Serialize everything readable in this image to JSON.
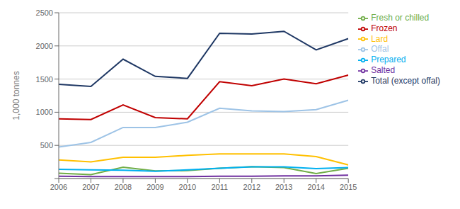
{
  "chart_data": {
    "type": "line",
    "x": [
      2006,
      2007,
      2008,
      2009,
      2010,
      2011,
      2012,
      2013,
      2014,
      2015
    ],
    "series": [
      {
        "name": "Total (except offal)",
        "color": "#1f3864",
        "values": [
          1420,
          1390,
          1800,
          1540,
          1510,
          2190,
          2180,
          2220,
          1940,
          2110
        ]
      },
      {
        "name": "Frozen",
        "color": "#c00000",
        "values": [
          900,
          890,
          1110,
          920,
          900,
          1460,
          1400,
          1500,
          1430,
          1560
        ]
      },
      {
        "name": "Fresh or chilled",
        "color": "#70ad47",
        "values": [
          80,
          60,
          170,
          115,
          120,
          155,
          180,
          165,
          75,
          155
        ]
      },
      {
        "name": "Salted",
        "color": "#7030a0",
        "values": [
          35,
          30,
          30,
          30,
          30,
          35,
          35,
          40,
          40,
          50
        ]
      },
      {
        "name": "Prepared",
        "color": "#00b0f0",
        "values": [
          140,
          130,
          125,
          110,
          130,
          155,
          175,
          175,
          150,
          165
        ]
      },
      {
        "name": "Lard",
        "color": "#ffc000",
        "values": [
          280,
          250,
          320,
          320,
          350,
          370,
          370,
          370,
          330,
          205
        ]
      },
      {
        "name": "Offal",
        "color": "#9dc3e6",
        "values": [
          475,
          545,
          770,
          770,
          850,
          1060,
          1020,
          1010,
          1040,
          1180
        ]
      }
    ],
    "ylabel": "1,000 tonnes",
    "xlim": [
      2006,
      2015
    ],
    "xticks": [
      2006,
      2007,
      2008,
      2009,
      2010,
      2011,
      2012,
      2013,
      2014,
      2015
    ],
    "ylim": [
      0,
      2500
    ],
    "yticks": [
      {
        "value": 0,
        "label": ""
      },
      500,
      1000,
      1500,
      2000,
      2500
    ],
    "grid": "y",
    "legend": "right"
  }
}
